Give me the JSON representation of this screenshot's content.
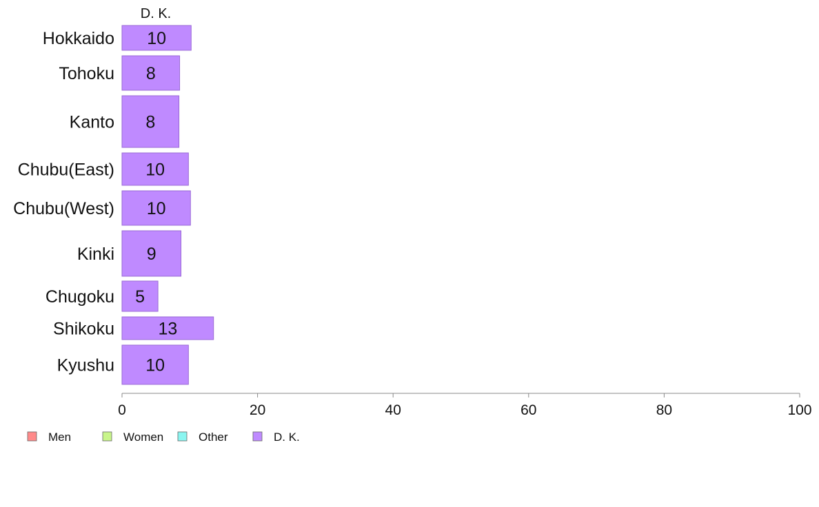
{
  "chart_data": {
    "type": "bar",
    "orientation": "horizontal",
    "stacked": true,
    "series_title": "D. K.",
    "categories": [
      "Hokkaido",
      "Tohoku",
      "Kanto",
      "Chubu(East)",
      "Chubu(West)",
      "Kinki",
      "Chugoku",
      "Shikoku",
      "Kyushu"
    ],
    "series": [
      {
        "name": "Men",
        "color": "#ff8a8a",
        "values": [
          0,
          0,
          0,
          0,
          0,
          0,
          0,
          0,
          0
        ]
      },
      {
        "name": "Women",
        "color": "#c8f58a",
        "values": [
          0,
          0,
          0,
          0,
          0,
          0,
          0,
          0,
          0
        ]
      },
      {
        "name": "Other",
        "color": "#8af5f0",
        "values": [
          0,
          0,
          0,
          0,
          0,
          0,
          0,
          0,
          0
        ]
      },
      {
        "name": "D. K.",
        "color": "#bf8aff",
        "values": [
          10.2,
          8.5,
          8.4,
          9.8,
          10.1,
          8.7,
          5.3,
          13.5,
          9.8
        ],
        "labels": [
          "10",
          "8",
          "8",
          "10",
          "10",
          "9",
          "5",
          "13",
          "10"
        ]
      }
    ],
    "xlim": [
      0,
      100
    ],
    "xticks": [
      0,
      20,
      40,
      60,
      80,
      100
    ],
    "xtick_labels": [
      "0",
      "20",
      "40",
      "60",
      "80",
      "100"
    ],
    "grid": false,
    "legend_position": "bottom-left",
    "bar_border_color": "#9a6ad6",
    "axis_color": "#888888"
  }
}
